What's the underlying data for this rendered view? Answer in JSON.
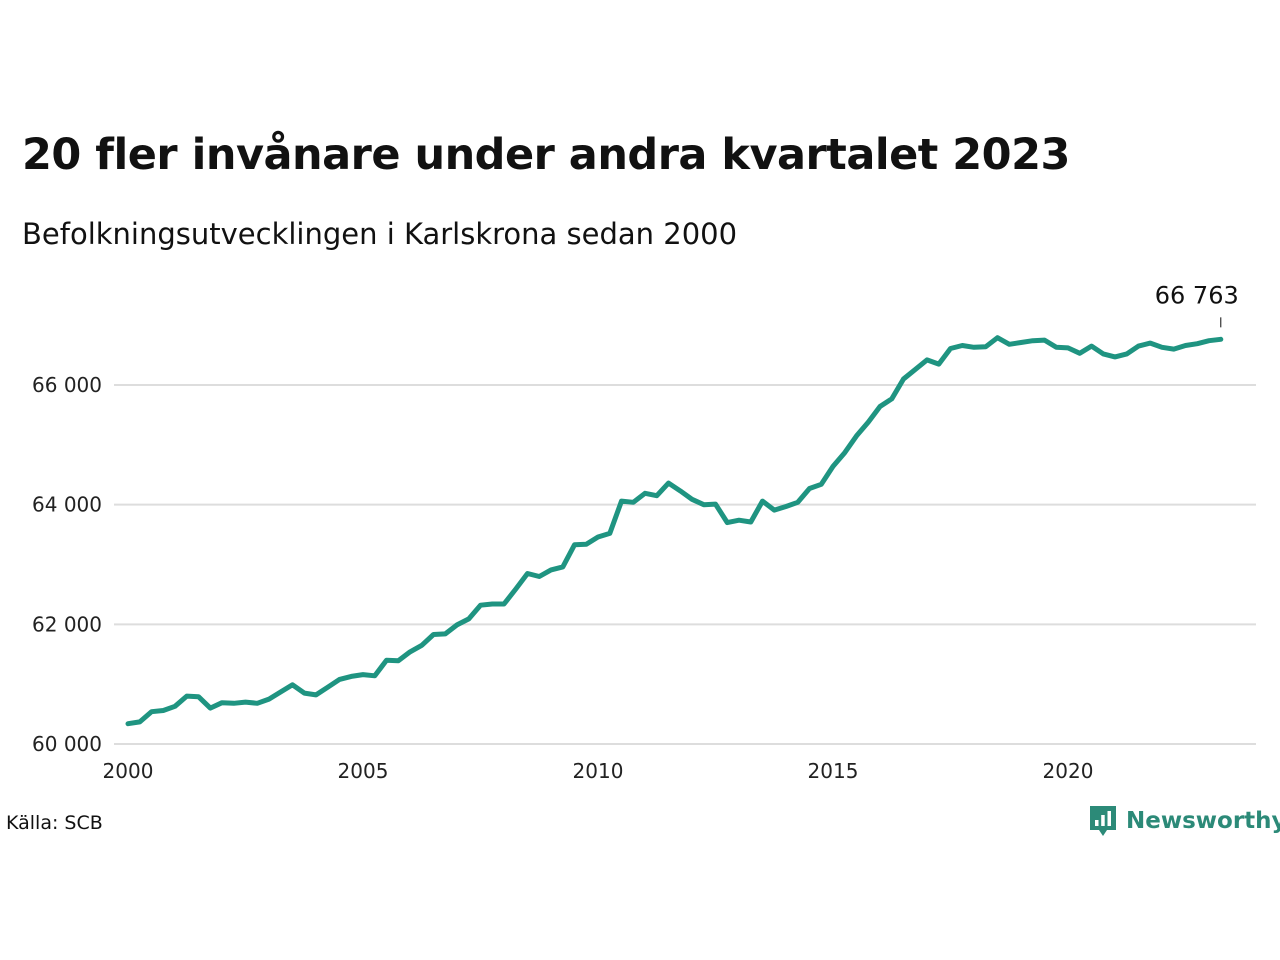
{
  "header": {
    "title": "20 fler invånare under andra kvartalet 2023",
    "subtitle": "Befolkningsutvecklingen i Karlskrona sedan 2000"
  },
  "footer": {
    "source": "Källa: SCB",
    "brand": "Newsworthy",
    "brand_icon": "newsworthy-logo-icon"
  },
  "colors": {
    "line": "#1f9481",
    "grid": "#dddddd",
    "brand": "#2c8a78"
  },
  "chart_data": {
    "type": "line",
    "x_label": "",
    "y_label": "",
    "x_ticks": [
      "2000",
      "2005",
      "2010",
      "2015",
      "2020"
    ],
    "y_ticks": [
      "60 000",
      "62 000",
      "64 000",
      "66 000"
    ],
    "ylim": [
      60000,
      67000
    ],
    "xlim": [
      2000.0,
      2024.0
    ],
    "grid": "horizontal",
    "end_label": "66 763",
    "series": [
      {
        "x": [
          2000.0,
          2000.25,
          2000.5,
          2000.75,
          2001.0,
          2001.25,
          2001.5,
          2001.75,
          2002.0,
          2002.25,
          2002.5,
          2002.75,
          2003.0,
          2003.25,
          2003.5,
          2003.75,
          2004.0,
          2004.25,
          2004.5,
          2004.75,
          2005.0,
          2005.25,
          2005.5,
          2005.75,
          2006.0,
          2006.25,
          2006.5,
          2006.75,
          2007.0,
          2007.25,
          2007.5,
          2007.75,
          2008.0,
          2008.25,
          2008.5,
          2008.75,
          2009.0,
          2009.25,
          2009.5,
          2009.75,
          2010.0,
          2010.25,
          2010.5,
          2010.75,
          2011.0,
          2011.25,
          2011.5,
          2011.75,
          2012.0,
          2012.25,
          2012.5,
          2012.75,
          2013.0,
          2013.25,
          2013.5,
          2013.75,
          2014.0,
          2014.25,
          2014.5,
          2014.75,
          2015.0,
          2015.25,
          2015.5,
          2015.75,
          2016.0,
          2016.25,
          2016.5,
          2016.75,
          2017.0,
          2017.25,
          2017.5,
          2017.75,
          2018.0,
          2018.25,
          2018.5,
          2018.75,
          2019.0,
          2019.25,
          2019.5,
          2019.75,
          2020.0,
          2020.25,
          2020.5,
          2020.75,
          2021.0,
          2021.25,
          2021.5,
          2021.75,
          2022.0,
          2022.25,
          2022.5,
          2022.75,
          2023.0,
          2023.25
        ],
        "values": [
          60340,
          60370,
          60540,
          60560,
          60630,
          60800,
          60790,
          60600,
          60690,
          60680,
          60700,
          60680,
          60750,
          60870,
          60990,
          60850,
          60820,
          60950,
          61080,
          61130,
          61160,
          61140,
          61400,
          61390,
          61540,
          61650,
          61830,
          61840,
          61990,
          62090,
          62320,
          62340,
          62340,
          62590,
          62850,
          62800,
          62910,
          62960,
          63330,
          63340,
          63460,
          63520,
          64060,
          64040,
          64190,
          64150,
          64360,
          64230,
          64090,
          64000,
          64010,
          63700,
          63740,
          63710,
          64060,
          63910,
          63970,
          64040,
          64270,
          64340,
          64640,
          64870,
          65150,
          65380,
          65640,
          65770,
          66100,
          66260,
          66420,
          66350,
          66610,
          66660,
          66630,
          66640,
          66790,
          66680,
          66710,
          66740,
          66750,
          66630,
          66620,
          66530,
          66650,
          66520,
          66470,
          66520,
          66650,
          66700,
          66630,
          66600,
          66660,
          66690,
          66740,
          66763
        ]
      }
    ]
  }
}
